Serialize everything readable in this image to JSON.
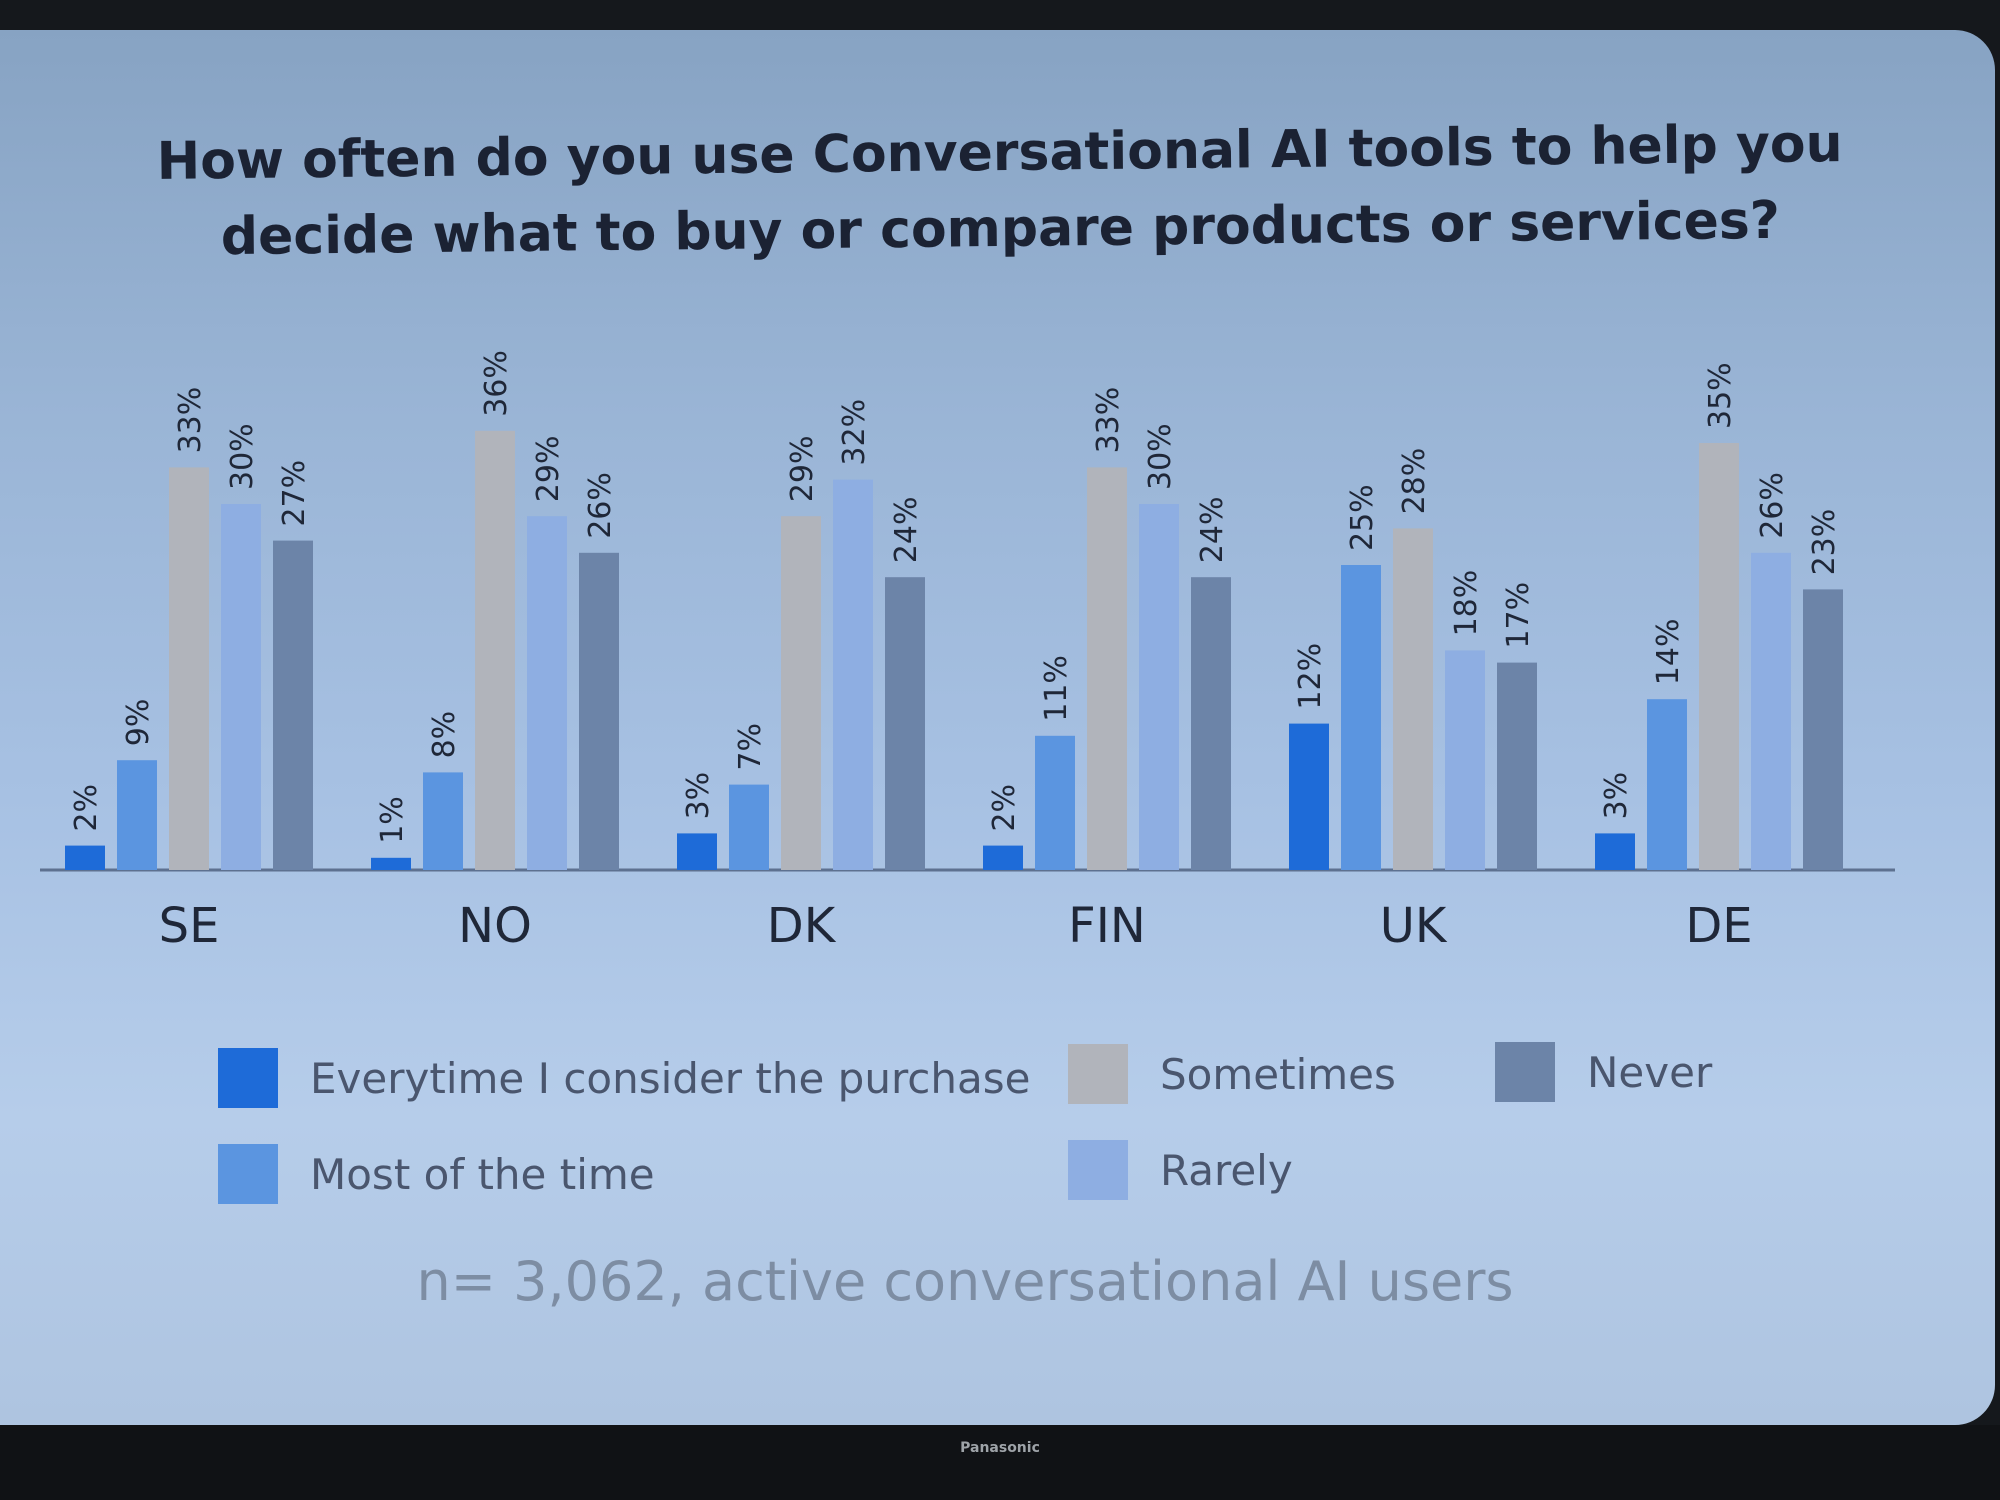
{
  "title": "How often do you use Conversational AI tools to help you decide what to buy or compare products or services?",
  "note": "n= 3,062, active conversational AI users",
  "brand": "Panasonic",
  "colors": {
    "everytime": "#1e6bd8",
    "most": "#5b95e0",
    "sometimes": "#b1b4bb",
    "rarely": "#8eaee2",
    "never": "#6c84a8"
  },
  "legend": {
    "everytime": "Everytime I consider the purchase",
    "most": "Most of the time",
    "sometimes": "Sometimes",
    "rarely": "Rarely",
    "never": "Never"
  },
  "chart_data": {
    "type": "bar",
    "title": "How often do you use Conversational AI tools to help you decide what to buy or compare products or services?",
    "xlabel": "",
    "ylabel": "",
    "categories": [
      "SE",
      "NO",
      "DK",
      "FIN",
      "UK",
      "DE"
    ],
    "series": [
      {
        "name": "Everytime I consider the purchase",
        "values": [
          2,
          1,
          3,
          2,
          12,
          3
        ],
        "color": "#1e6bd8"
      },
      {
        "name": "Most of the time",
        "values": [
          9,
          8,
          7,
          11,
          25,
          14
        ],
        "color": "#5b95e0"
      },
      {
        "name": "Sometimes",
        "values": [
          33,
          36,
          29,
          33,
          28,
          35
        ],
        "color": "#b1b4bb"
      },
      {
        "name": "Rarely",
        "values": [
          30,
          29,
          32,
          30,
          18,
          26
        ],
        "color": "#8eaee2"
      },
      {
        "name": "Never",
        "values": [
          27,
          26,
          24,
          24,
          17,
          23
        ],
        "color": "#6c84a8"
      }
    ],
    "value_suffix": "%",
    "ylim": [
      0,
      40
    ],
    "grid": false,
    "legend_position": "bottom"
  }
}
